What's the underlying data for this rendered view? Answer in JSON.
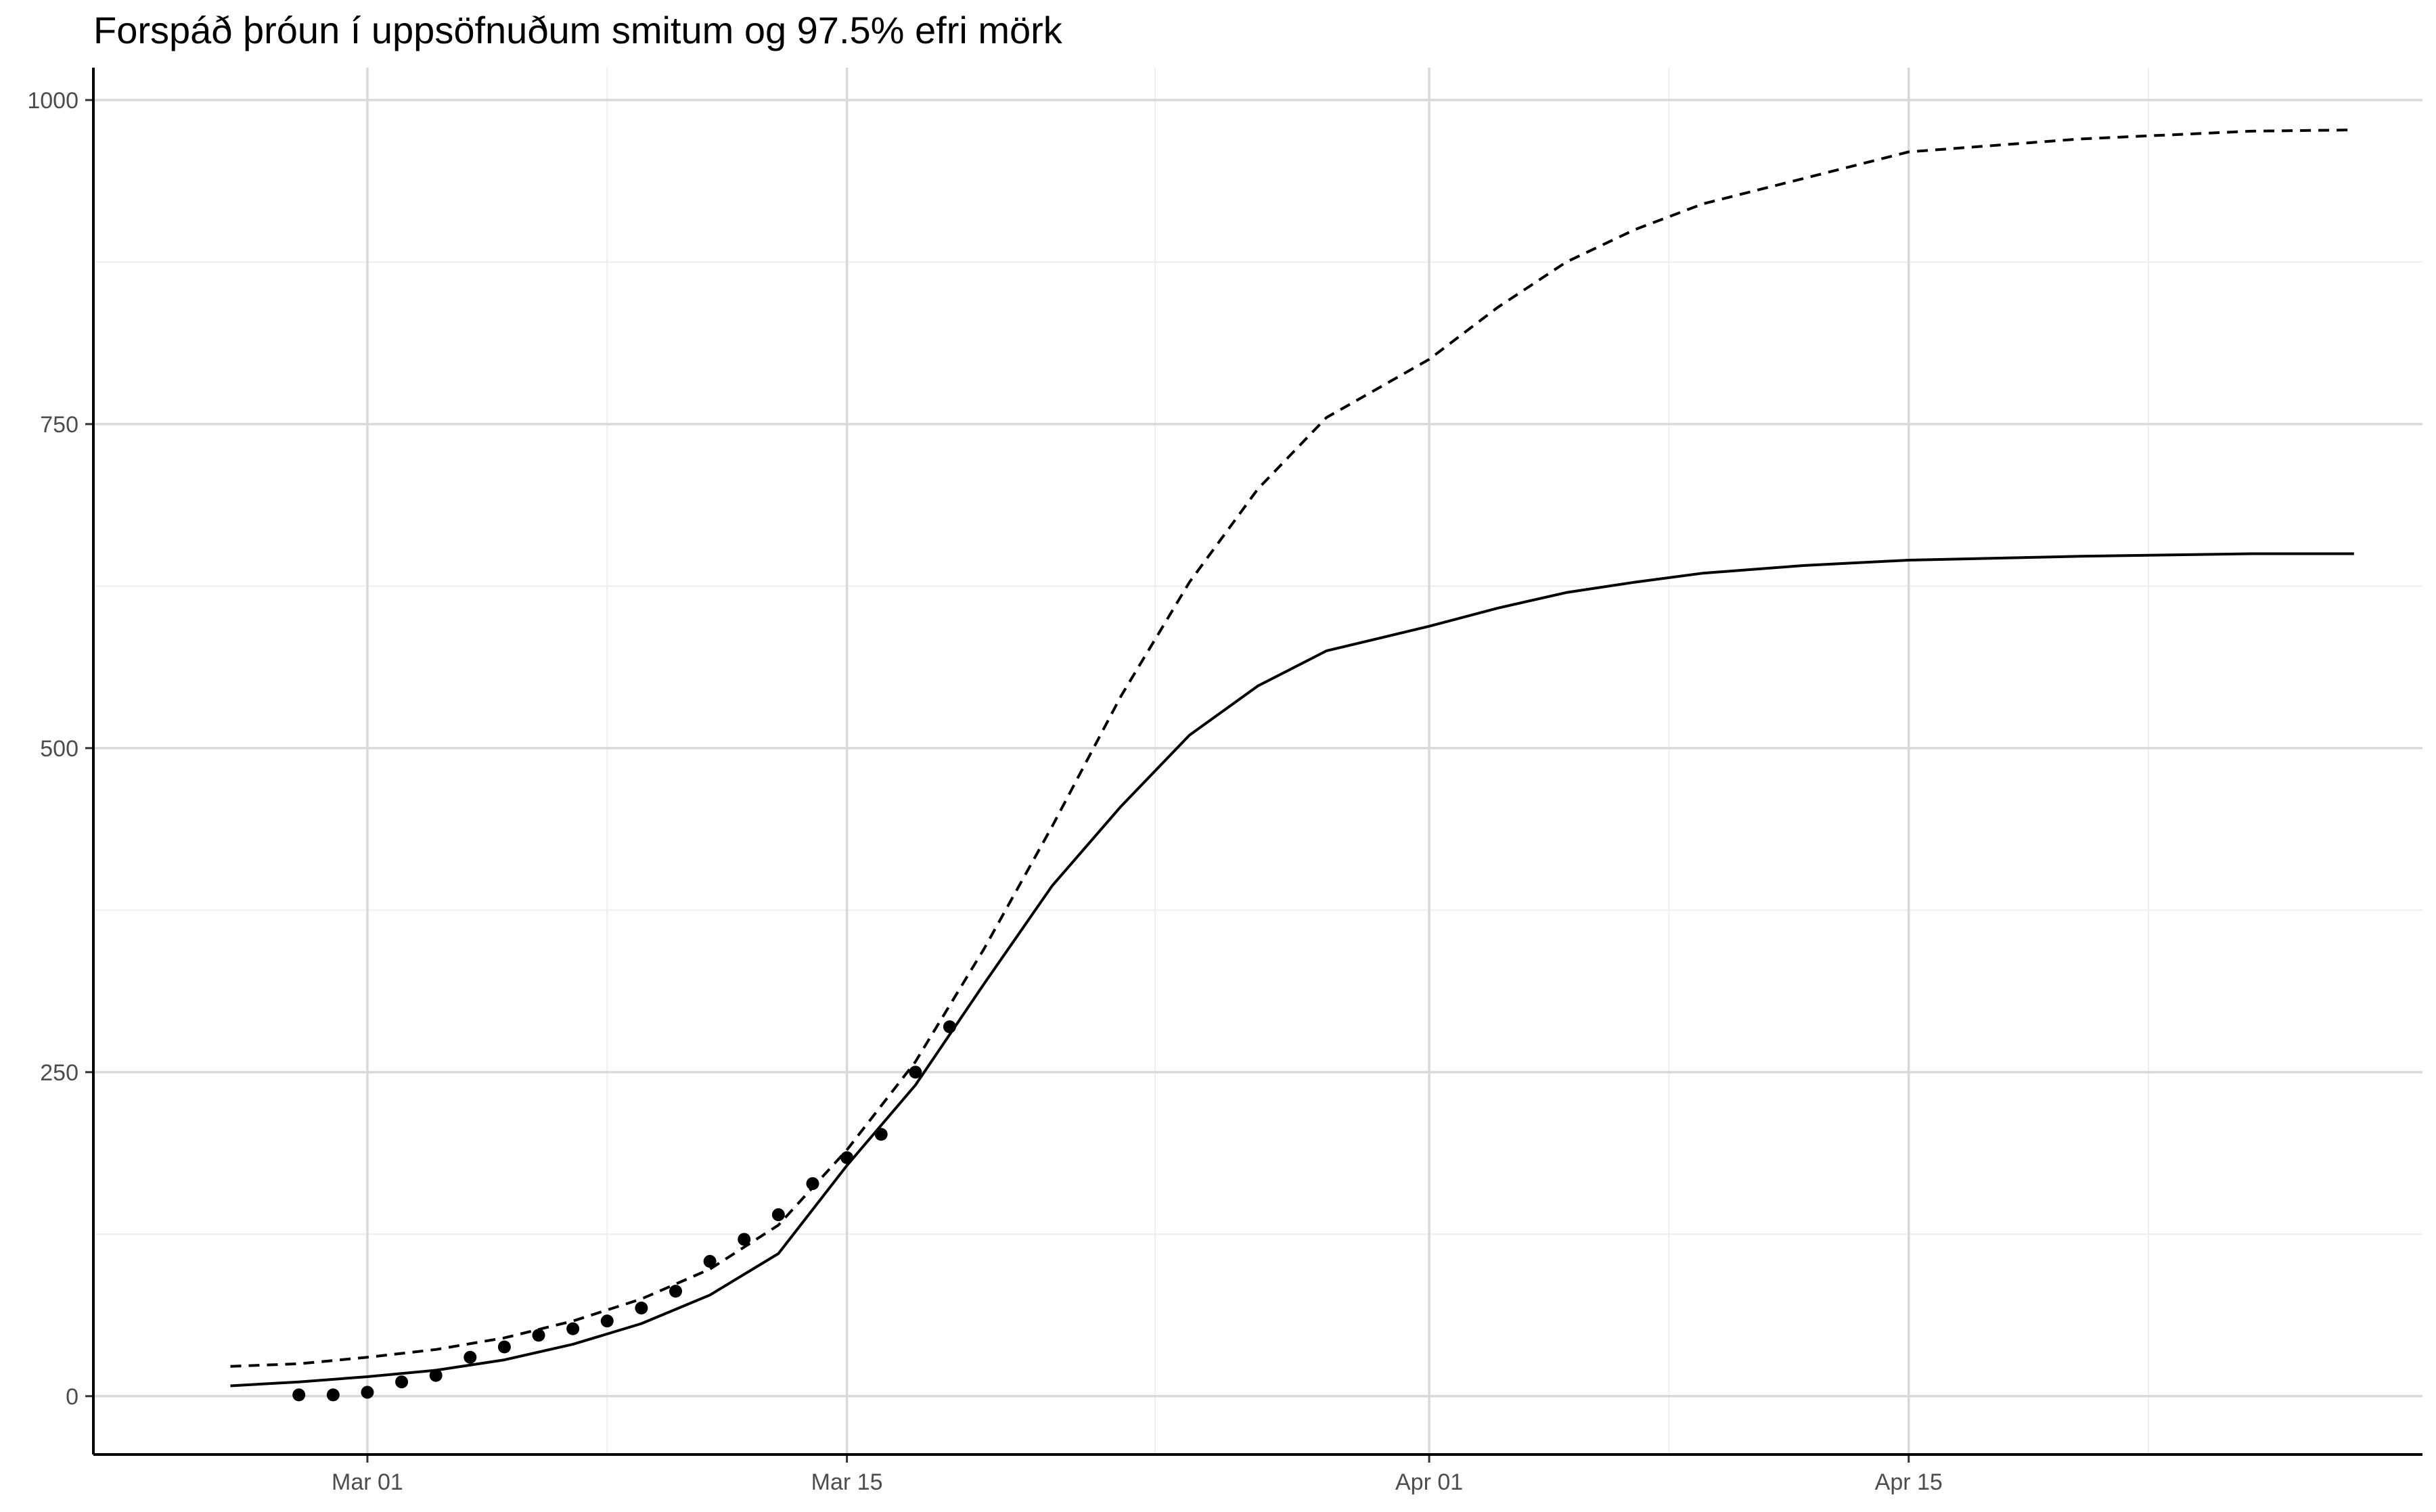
{
  "chart_data": {
    "type": "line",
    "title": "Forspáð þróun í uppsöfnuðum smitum og 97.5% efri mörk",
    "xlabel": "",
    "ylabel": "",
    "x_axis_type": "date",
    "xlim": [
      "2020-02-22",
      "2020-04-30"
    ],
    "ylim": [
      -45,
      1025
    ],
    "x_tick_dates": [
      "2020-03-01",
      "2020-03-15",
      "2020-04-01",
      "2020-04-15"
    ],
    "x_tick_labels": [
      "Mar 01",
      "Mar 15",
      "Apr 01",
      "Apr 15"
    ],
    "x_minor_dates": [
      "2020-02-22",
      "2020-03-08",
      "2020-03-24",
      "2020-04-08",
      "2020-04-22"
    ],
    "y_ticks": [
      0,
      250,
      500,
      750,
      1000
    ],
    "y_tick_labels": [
      "0",
      "250",
      "500",
      "750",
      "1000"
    ],
    "y_minor": [
      125,
      375,
      625,
      875
    ],
    "grid": true,
    "legend": "none",
    "colors": {
      "line": "#000000",
      "grid_major": "#d9d9d9",
      "grid_minor": "#eeeeee",
      "axis": "#000000"
    },
    "series": [
      {
        "style": "solid",
        "points": [
          [
            "2020-02-26",
            8
          ],
          [
            "2020-02-28",
            11
          ],
          [
            "2020-03-01",
            15
          ],
          [
            "2020-03-03",
            20
          ],
          [
            "2020-03-05",
            28
          ],
          [
            "2020-03-07",
            40
          ],
          [
            "2020-03-09",
            56
          ],
          [
            "2020-03-11",
            78
          ],
          [
            "2020-03-13",
            110
          ],
          [
            "2020-03-15",
            178
          ],
          [
            "2020-03-17",
            240
          ],
          [
            "2020-03-19",
            318
          ],
          [
            "2020-03-21",
            394
          ],
          [
            "2020-03-23",
            455
          ],
          [
            "2020-03-25",
            510
          ],
          [
            "2020-03-27",
            548
          ],
          [
            "2020-03-29",
            575
          ],
          [
            "2020-04-01",
            594
          ],
          [
            "2020-04-03",
            608
          ],
          [
            "2020-04-05",
            620
          ],
          [
            "2020-04-07",
            628
          ],
          [
            "2020-04-09",
            635
          ],
          [
            "2020-04-12",
            641
          ],
          [
            "2020-04-15",
            645
          ],
          [
            "2020-04-20",
            648
          ],
          [
            "2020-04-25",
            650
          ],
          [
            "2020-04-28",
            650
          ]
        ]
      },
      {
        "style": "dashed",
        "points": [
          [
            "2020-02-26",
            23
          ],
          [
            "2020-02-28",
            25
          ],
          [
            "2020-03-01",
            30
          ],
          [
            "2020-03-03",
            36
          ],
          [
            "2020-03-05",
            45
          ],
          [
            "2020-03-07",
            58
          ],
          [
            "2020-03-09",
            75
          ],
          [
            "2020-03-11",
            98
          ],
          [
            "2020-03-13",
            132
          ],
          [
            "2020-03-15",
            190
          ],
          [
            "2020-03-17",
            258
          ],
          [
            "2020-03-19",
            345
          ],
          [
            "2020-03-21",
            440
          ],
          [
            "2020-03-23",
            540
          ],
          [
            "2020-03-25",
            628
          ],
          [
            "2020-03-27",
            700
          ],
          [
            "2020-03-29",
            755
          ],
          [
            "2020-04-01",
            800
          ],
          [
            "2020-04-03",
            840
          ],
          [
            "2020-04-05",
            875
          ],
          [
            "2020-04-07",
            900
          ],
          [
            "2020-04-09",
            920
          ],
          [
            "2020-04-12",
            940
          ],
          [
            "2020-04-15",
            960
          ],
          [
            "2020-04-20",
            970
          ],
          [
            "2020-04-25",
            976
          ],
          [
            "2020-04-28",
            977
          ]
        ]
      }
    ],
    "observed": [
      [
        "2020-02-28",
        1
      ],
      [
        "2020-02-29",
        1
      ],
      [
        "2020-03-01",
        3
      ],
      [
        "2020-03-02",
        11
      ],
      [
        "2020-03-03",
        16
      ],
      [
        "2020-03-04",
        30
      ],
      [
        "2020-03-05",
        38
      ],
      [
        "2020-03-06",
        47
      ],
      [
        "2020-03-07",
        52
      ],
      [
        "2020-03-08",
        58
      ],
      [
        "2020-03-09",
        68
      ],
      [
        "2020-03-10",
        81
      ],
      [
        "2020-03-11",
        104
      ],
      [
        "2020-03-12",
        121
      ],
      [
        "2020-03-13",
        140
      ],
      [
        "2020-03-14",
        164
      ],
      [
        "2020-03-15",
        184
      ],
      [
        "2020-03-16",
        202
      ],
      [
        "2020-03-17",
        250
      ],
      [
        "2020-03-18",
        285
      ]
    ]
  }
}
